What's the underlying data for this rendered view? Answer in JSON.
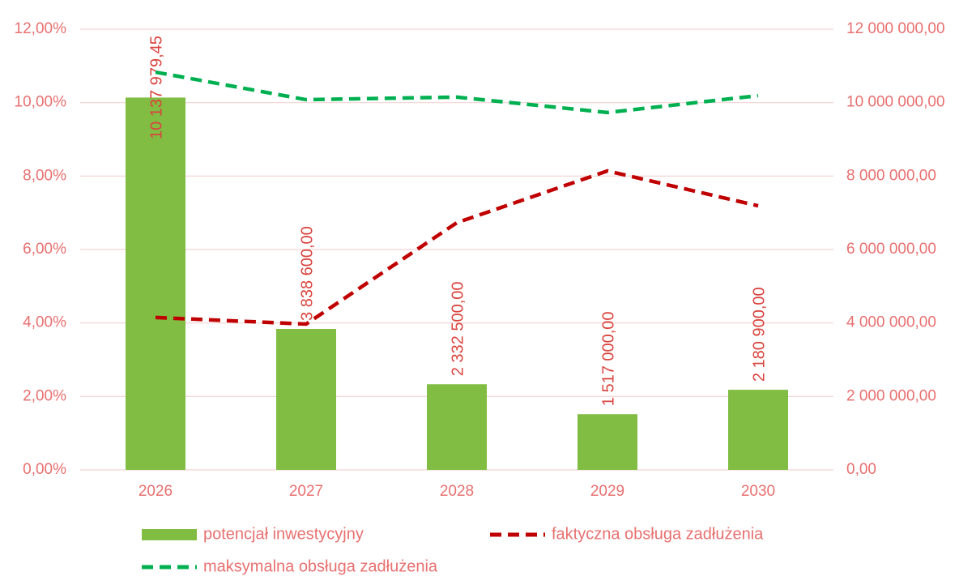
{
  "chart_data": {
    "type": "bar",
    "categories": [
      "2026",
      "2027",
      "2028",
      "2029",
      "2030"
    ],
    "series": [
      {
        "name": "potencjał inwestycyjny",
        "type": "bar",
        "axis": "y2",
        "color": "#80bd42",
        "values": [
          10137979.45,
          3838600,
          2332500,
          1517000,
          2180900
        ],
        "value_labels": [
          "10 137 979,45",
          "3 838 600,00",
          "2 332 500,00",
          "1 517 000,00",
          "2 180 900,00"
        ]
      },
      {
        "name": "faktyczna obsługa zadłużenia",
        "type": "line",
        "dashed": true,
        "color": "#c00000",
        "values": [
          4.15,
          3.97,
          6.73,
          8.14,
          7.19
        ]
      },
      {
        "name": "maksymalna obsługa zadłużenia",
        "type": "line",
        "dashed": true,
        "color": "#00b050",
        "values": [
          10.83,
          10.08,
          10.15,
          9.73,
          10.19
        ]
      }
    ],
    "ylim": [
      0,
      12
    ],
    "yticks": [
      {
        "value": 0,
        "label": "0,00%"
      },
      {
        "value": 2,
        "label": "2,00%"
      },
      {
        "value": 4,
        "label": "4,00%"
      },
      {
        "value": 6,
        "label": "6,00%"
      },
      {
        "value": 8,
        "label": "8,00%"
      },
      {
        "value": 10,
        "label": "10,00%"
      },
      {
        "value": 12,
        "label": "12,00%"
      }
    ],
    "y2lim": [
      0,
      12000000
    ],
    "y2ticks": [
      {
        "value": 0,
        "label": "0,00"
      },
      {
        "value": 2000000,
        "label": "2 000 000,00"
      },
      {
        "value": 4000000,
        "label": "4 000 000,00"
      },
      {
        "value": 6000000,
        "label": "6 000 000,00"
      },
      {
        "value": 8000000,
        "label": "8 000 000,00"
      },
      {
        "value": 10000000,
        "label": "10 000 000,00"
      },
      {
        "value": 12000000,
        "label": "12 000 000,00"
      }
    ],
    "grid": true,
    "legend": "bottom"
  }
}
